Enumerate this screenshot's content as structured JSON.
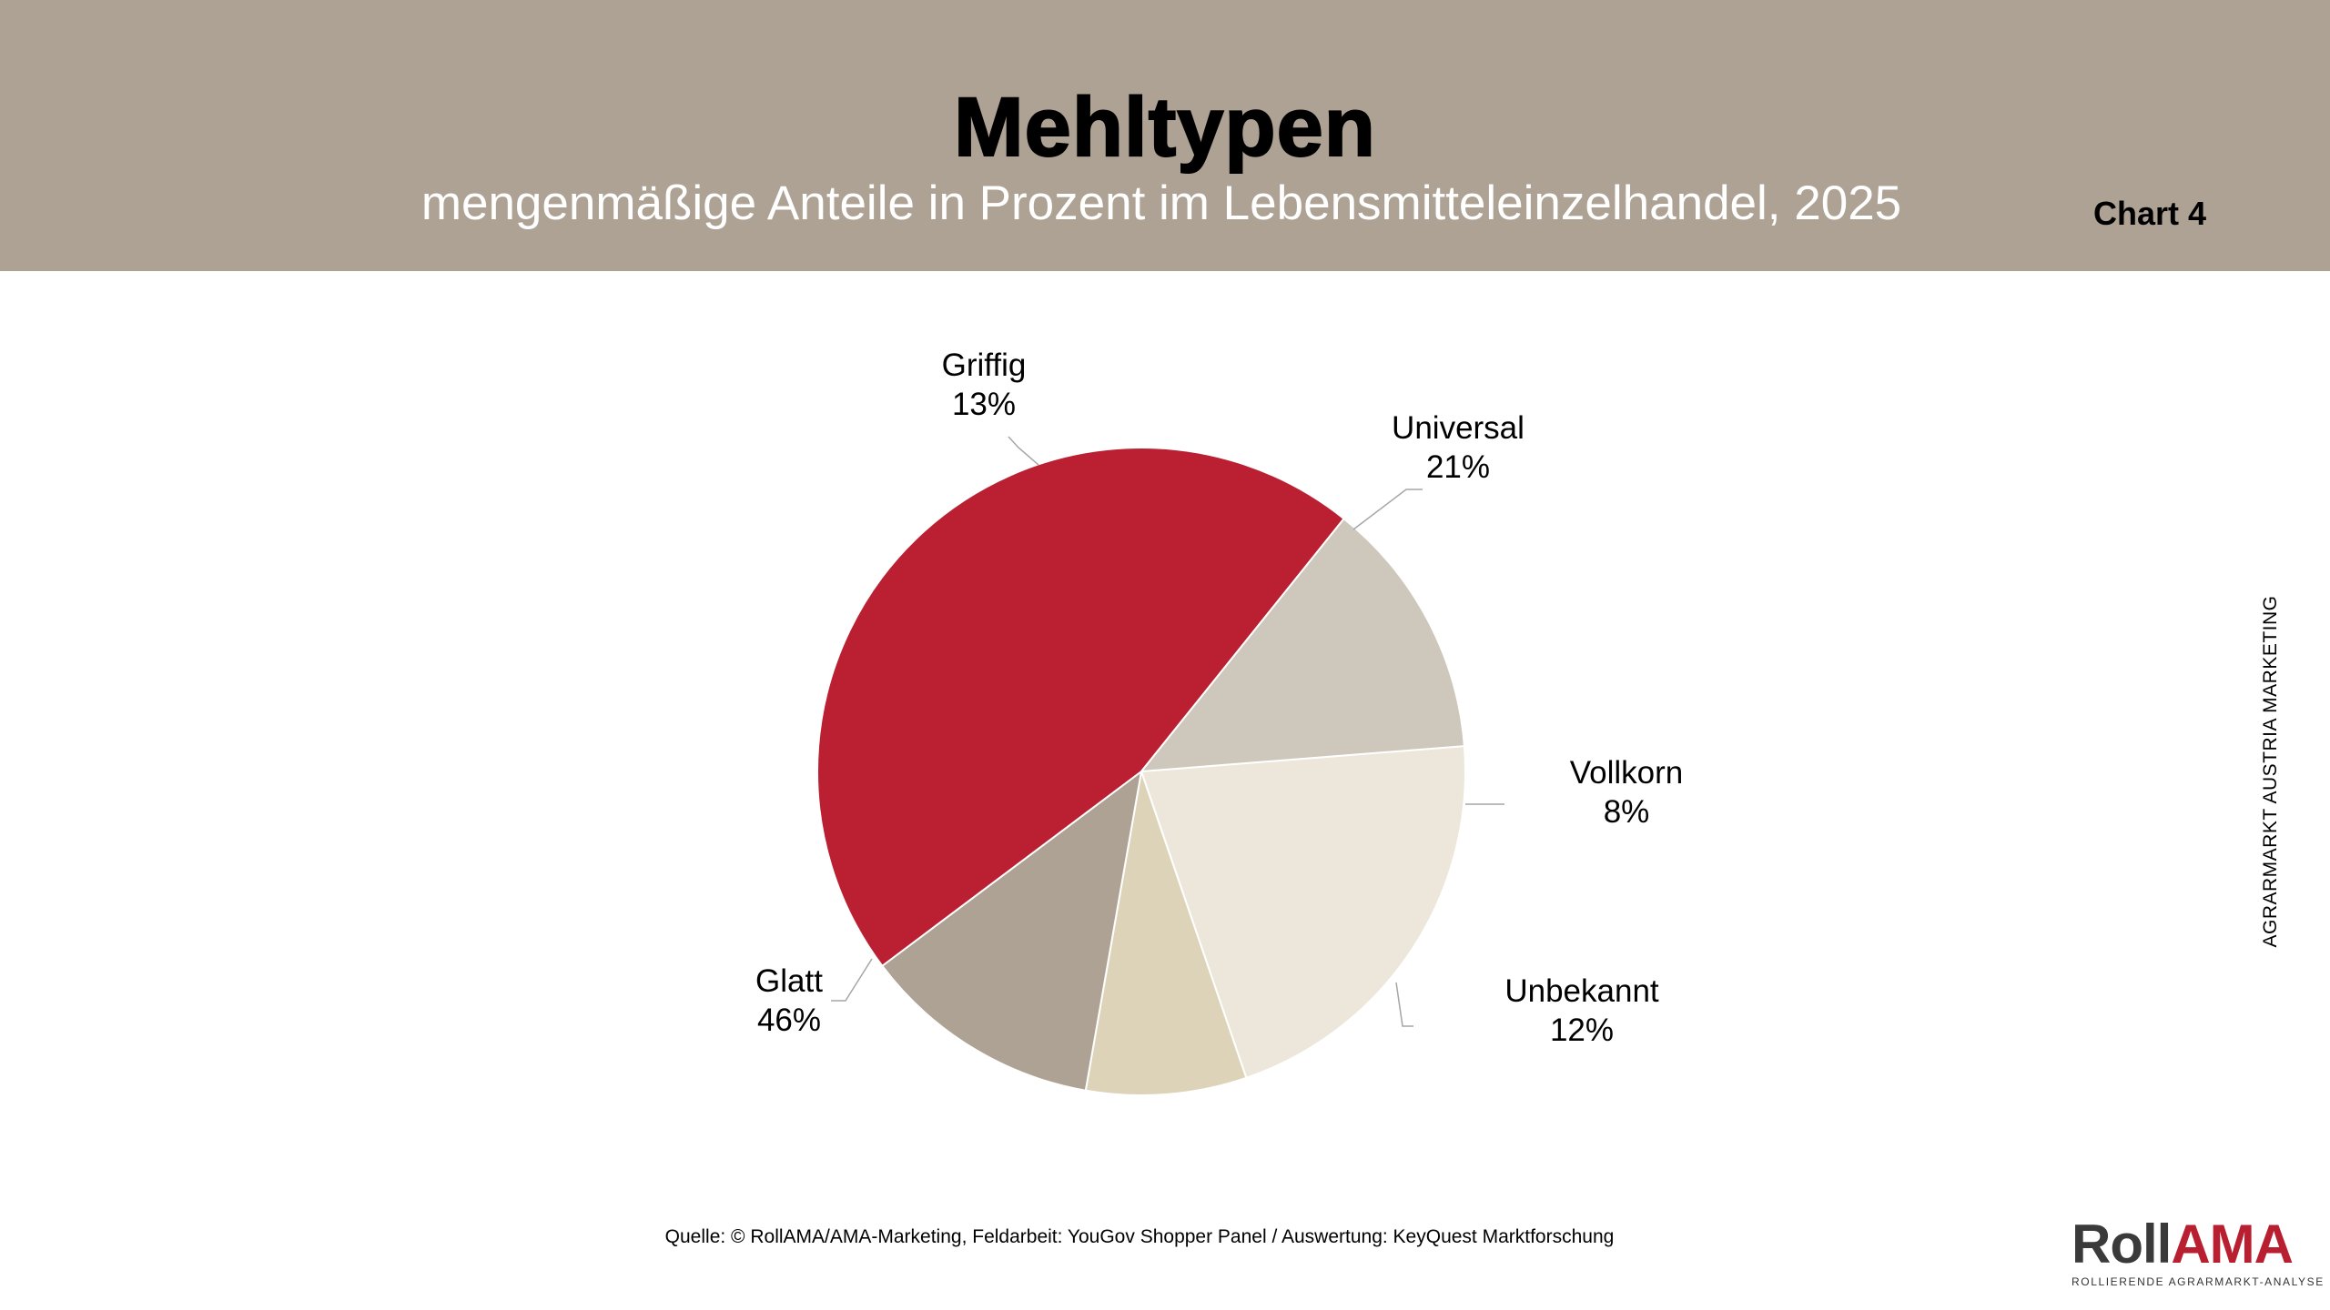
{
  "header": {
    "title": "Mehltypen",
    "subtitle": "mengenmäßige Anteile in Prozent im Lebensmitteleinzelhandel, 2025",
    "chart_number": "Chart 4",
    "background_color": "#ada293"
  },
  "side_text": "AGRARMARKT AUSTRIA MARKETING",
  "source": "Quelle: © RollAMA/AMA-Marketing, Feldarbeit: YouGov Shopper Panel / Auswertung: KeyQuest Marktforschung",
  "logo": {
    "roll": "Roll",
    "ama": "AMA",
    "tagline": "ROLLIERENDE AGRARMARKT-ANALYSE"
  },
  "chart_data": {
    "type": "pie",
    "title": "Mehltypen",
    "subtitle": "mengenmäßige Anteile in Prozent im Lebensmitteleinzelhandel, 2025",
    "slices": [
      {
        "label": "Universal",
        "value": 21,
        "value_label": "21%",
        "color": "#ece7da"
      },
      {
        "label": "Vollkorn",
        "value": 8,
        "value_label": "8%",
        "color": "#ddd3b9"
      },
      {
        "label": "Unbekannt",
        "value": 12,
        "value_label": "12%",
        "color": "#ada293"
      },
      {
        "label": "Glatt",
        "value": 46,
        "value_label": "46%",
        "color": "#bb1f32"
      },
      {
        "label": "Griffig",
        "value": 13,
        "value_label": "13%",
        "color": "#cec7bc"
      }
    ]
  }
}
